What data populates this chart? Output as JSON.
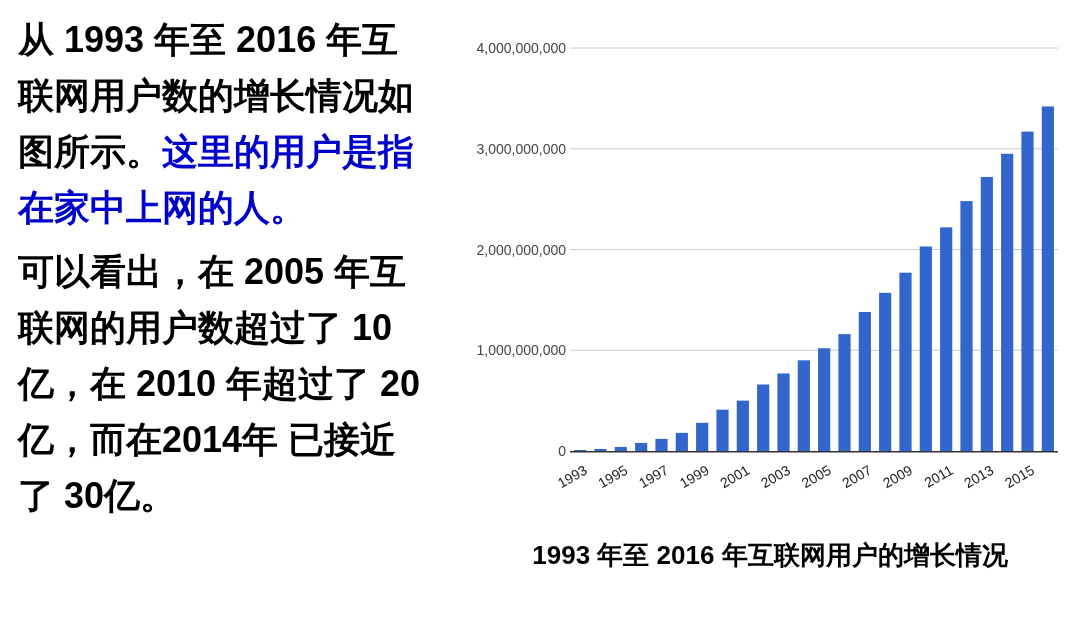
{
  "chart_data": {
    "type": "bar",
    "title": "1993 年至 2016 年互联网用户的增长情况",
    "annotations": [
      "从 1993 年至 2016 年互联网用户数的增长情况如图所示。",
      "这里的用户是指在家中上网的人。",
      "可以看出，在 2005 年互联网的用户数超过了 10 亿，在 2010 年超过了 20 亿，而在2014年 已接近了 30亿。"
    ],
    "categories": [
      "1993",
      null,
      "1995",
      null,
      "1997",
      null,
      "1999",
      null,
      "2001",
      null,
      "2003",
      null,
      "2005",
      null,
      "2007",
      null,
      "2009",
      null,
      "2011",
      null,
      "2013",
      null,
      "2015",
      null
    ],
    "values": [
      10000000,
      20000000,
      40000000,
      80000000,
      120000000,
      180000000,
      280000000,
      410000000,
      500000000,
      660000000,
      770000000,
      900000000,
      1020000000,
      1160000000,
      1380000000,
      1570000000,
      1770000000,
      2030000000,
      2220000000,
      2480000000,
      2720000000,
      2950000000,
      3170000000,
      3420000000
    ],
    "color": "#3366cc",
    "ylim": [
      0,
      4000000000
    ],
    "yticks": [
      {
        "value": 0,
        "label": "0"
      },
      {
        "value": 1000000000,
        "label": "1,000,000,000"
      },
      {
        "value": 2000000000,
        "label": "2,000,000,000"
      },
      {
        "value": 3000000000,
        "label": "3,000,000,000"
      },
      {
        "value": 4000000000,
        "label": "4,000,000,000"
      }
    ],
    "grid": "y"
  }
}
